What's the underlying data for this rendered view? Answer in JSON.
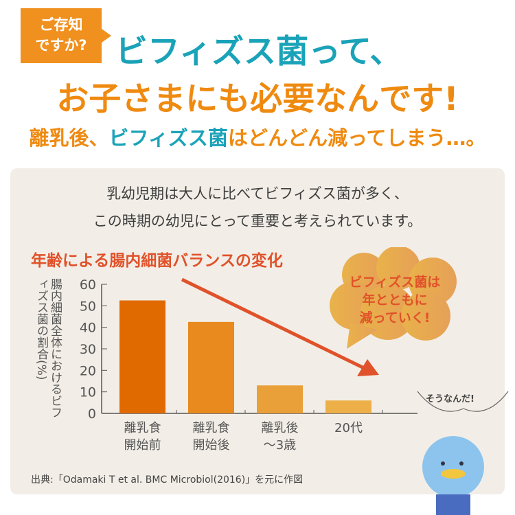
{
  "badge": {
    "line1": "ご存知",
    "line2": "ですか?"
  },
  "headline": {
    "line1": "ビフィズス菌って、",
    "line2": "お子さまにも必要なんです!",
    "line3_pre": "離乳後、",
    "line3_teal": "ビフィズス菌",
    "line3_post": "はどんどん減ってしまう…。"
  },
  "intro": {
    "line1": "乳幼児期は大人に比べてビフィズス菌が多く、",
    "line2": "この時期の幼児にとって重要と考えられています。"
  },
  "callout": {
    "line1": "ビフィズス菌は",
    "line2": "年とともに",
    "line3": "減っていく!"
  },
  "character_speech": "そうなんだ!",
  "colors": {
    "accent_orange": "#ef8a10",
    "teal": "#1aa3b8",
    "red": "#e0522a",
    "panel": "#f2eee7"
  },
  "chart_data": {
    "type": "bar",
    "title": "年齢による腸内細菌バランスの変化",
    "ylabel": "腸内細菌全体におけるビフィズス菌の割合(%)",
    "xlabel": "",
    "categories": [
      [
        "離乳食",
        "開始前"
      ],
      [
        "離乳食",
        "開始後"
      ],
      [
        "離乳後",
        "〜3歳"
      ],
      [
        "20代",
        ""
      ]
    ],
    "values": [
      52.5,
      42.5,
      13,
      6
    ],
    "bar_colors": [
      "#e06a00",
      "#e88a1e",
      "#eaa038",
      "#edb048"
    ],
    "ylim": [
      0,
      60
    ],
    "yticks": [
      "0",
      "10",
      "20",
      "30",
      "40",
      "50",
      "60"
    ],
    "grid": false,
    "annotation": "downward trend arrow"
  },
  "source": "出典:「Odamaki T et al. BMC Microbiol(2016)」を元に作図"
}
